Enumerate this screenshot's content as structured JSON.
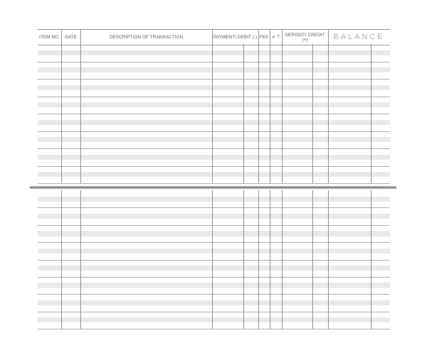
{
  "register": {
    "columns": {
      "item_no": "ITEM NO.",
      "date": "DATE",
      "description": "DESCRIPTION OF TRANSACTION",
      "payment": "PAYMENT/ DEBIT (-)",
      "fee": "FEE",
      "check": "✔ T",
      "deposit": "DEPOSIT/ CREDIT (+)",
      "balance": "BALANCE"
    }
  }
}
